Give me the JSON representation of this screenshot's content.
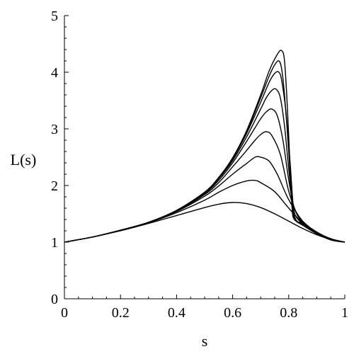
{
  "chart_data": {
    "type": "line",
    "title": "",
    "xlabel": "s",
    "ylabel": "L(s)",
    "xlim": [
      0,
      1
    ],
    "ylim": [
      0,
      5
    ],
    "xticks": [
      0,
      0.2,
      0.4,
      0.6,
      0.8,
      1
    ],
    "xtick_labels": [
      "0",
      "0.2",
      "0.4",
      "0.6",
      "0.8",
      "1"
    ],
    "yticks": [
      0,
      1,
      2,
      3,
      4,
      5
    ],
    "ytick_labels": [
      "0",
      "1",
      "2",
      "3",
      "4",
      "5"
    ],
    "grid": false,
    "line_color": "#000000",
    "series": [
      {
        "points": [
          [
            0,
            1.0
          ],
          [
            0.1,
            1.09
          ],
          [
            0.2,
            1.2
          ],
          [
            0.3,
            1.33
          ],
          [
            0.4,
            1.47
          ],
          [
            0.5,
            1.61
          ],
          [
            0.55,
            1.67
          ],
          [
            0.6,
            1.7
          ],
          [
            0.65,
            1.68
          ],
          [
            0.7,
            1.61
          ],
          [
            0.75,
            1.5
          ],
          [
            0.8,
            1.37
          ],
          [
            0.85,
            1.24
          ],
          [
            0.9,
            1.13
          ],
          [
            0.95,
            1.05
          ],
          [
            1.0,
            1.0
          ]
        ]
      },
      {
        "points": [
          [
            0,
            1.0
          ],
          [
            0.1,
            1.09
          ],
          [
            0.2,
            1.21
          ],
          [
            0.3,
            1.34
          ],
          [
            0.4,
            1.52
          ],
          [
            0.5,
            1.74
          ],
          [
            0.55,
            1.88
          ],
          [
            0.6,
            2.0
          ],
          [
            0.65,
            2.08
          ],
          [
            0.68,
            2.09
          ],
          [
            0.7,
            2.05
          ],
          [
            0.75,
            1.89
          ],
          [
            0.8,
            1.6
          ],
          [
            0.85,
            1.34
          ],
          [
            0.9,
            1.17
          ],
          [
            0.95,
            1.06
          ],
          [
            1.0,
            1.0
          ]
        ]
      },
      {
        "points": [
          [
            0,
            1.0
          ],
          [
            0.1,
            1.09
          ],
          [
            0.2,
            1.21
          ],
          [
            0.3,
            1.35
          ],
          [
            0.4,
            1.54
          ],
          [
            0.5,
            1.81
          ],
          [
            0.55,
            1.99
          ],
          [
            0.6,
            2.2
          ],
          [
            0.65,
            2.39
          ],
          [
            0.68,
            2.5
          ],
          [
            0.7,
            2.5
          ],
          [
            0.73,
            2.43
          ],
          [
            0.76,
            2.19
          ],
          [
            0.8,
            1.75
          ],
          [
            0.85,
            1.37
          ],
          [
            0.9,
            1.18
          ],
          [
            0.95,
            1.06
          ],
          [
            1.0,
            1.0
          ]
        ]
      },
      {
        "points": [
          [
            0,
            1.0
          ],
          [
            0.1,
            1.09
          ],
          [
            0.2,
            1.21
          ],
          [
            0.3,
            1.35
          ],
          [
            0.4,
            1.55
          ],
          [
            0.5,
            1.84
          ],
          [
            0.55,
            2.05
          ],
          [
            0.6,
            2.33
          ],
          [
            0.65,
            2.62
          ],
          [
            0.68,
            2.8
          ],
          [
            0.7,
            2.9
          ],
          [
            0.72,
            2.95
          ],
          [
            0.74,
            2.88
          ],
          [
            0.77,
            2.55
          ],
          [
            0.8,
            1.9
          ],
          [
            0.83,
            1.5
          ],
          [
            0.87,
            1.28
          ],
          [
            0.92,
            1.12
          ],
          [
            0.96,
            1.04
          ],
          [
            1.0,
            1.0
          ]
        ]
      },
      {
        "points": [
          [
            0,
            1.0
          ],
          [
            0.1,
            1.09
          ],
          [
            0.2,
            1.21
          ],
          [
            0.3,
            1.35
          ],
          [
            0.4,
            1.56
          ],
          [
            0.5,
            1.86
          ],
          [
            0.55,
            2.09
          ],
          [
            0.6,
            2.4
          ],
          [
            0.65,
            2.78
          ],
          [
            0.68,
            3.02
          ],
          [
            0.7,
            3.18
          ],
          [
            0.72,
            3.3
          ],
          [
            0.74,
            3.35
          ],
          [
            0.76,
            3.22
          ],
          [
            0.78,
            2.78
          ],
          [
            0.8,
            2.1
          ],
          [
            0.82,
            1.6
          ],
          [
            0.85,
            1.35
          ],
          [
            0.9,
            1.15
          ],
          [
            0.95,
            1.05
          ],
          [
            1.0,
            1.0
          ]
        ]
      },
      {
        "points": [
          [
            0,
            1.0
          ],
          [
            0.1,
            1.09
          ],
          [
            0.2,
            1.21
          ],
          [
            0.3,
            1.35
          ],
          [
            0.4,
            1.56
          ],
          [
            0.5,
            1.87
          ],
          [
            0.55,
            2.12
          ],
          [
            0.6,
            2.44
          ],
          [
            0.65,
            2.86
          ],
          [
            0.7,
            3.35
          ],
          [
            0.72,
            3.55
          ],
          [
            0.74,
            3.68
          ],
          [
            0.755,
            3.7
          ],
          [
            0.77,
            3.55
          ],
          [
            0.785,
            3.05
          ],
          [
            0.8,
            2.3
          ],
          [
            0.815,
            1.65
          ],
          [
            0.83,
            1.42
          ],
          [
            0.87,
            1.25
          ],
          [
            0.92,
            1.1
          ],
          [
            0.96,
            1.03
          ],
          [
            1.0,
            1.0
          ]
        ]
      },
      {
        "points": [
          [
            0,
            1.0
          ],
          [
            0.1,
            1.09
          ],
          [
            0.2,
            1.21
          ],
          [
            0.3,
            1.35
          ],
          [
            0.4,
            1.56
          ],
          [
            0.5,
            1.88
          ],
          [
            0.55,
            2.13
          ],
          [
            0.6,
            2.47
          ],
          [
            0.65,
            2.92
          ],
          [
            0.7,
            3.47
          ],
          [
            0.73,
            3.82
          ],
          [
            0.75,
            3.98
          ],
          [
            0.765,
            4.0
          ],
          [
            0.775,
            3.85
          ],
          [
            0.79,
            3.3
          ],
          [
            0.805,
            2.4
          ],
          [
            0.815,
            1.7
          ],
          [
            0.825,
            1.4
          ],
          [
            0.86,
            1.27
          ],
          [
            0.9,
            1.15
          ],
          [
            0.95,
            1.04
          ],
          [
            1.0,
            1.0
          ]
        ]
      },
      {
        "points": [
          [
            0,
            1.0
          ],
          [
            0.1,
            1.09
          ],
          [
            0.2,
            1.21
          ],
          [
            0.3,
            1.35
          ],
          [
            0.4,
            1.56
          ],
          [
            0.5,
            1.88
          ],
          [
            0.55,
            2.14
          ],
          [
            0.6,
            2.48
          ],
          [
            0.65,
            2.95
          ],
          [
            0.7,
            3.55
          ],
          [
            0.73,
            3.93
          ],
          [
            0.75,
            4.13
          ],
          [
            0.765,
            4.2
          ],
          [
            0.775,
            4.05
          ],
          [
            0.785,
            3.6
          ],
          [
            0.8,
            2.6
          ],
          [
            0.81,
            1.8
          ],
          [
            0.82,
            1.42
          ],
          [
            0.85,
            1.3
          ],
          [
            0.9,
            1.15
          ],
          [
            0.95,
            1.04
          ],
          [
            1.0,
            1.0
          ]
        ]
      },
      {
        "points": [
          [
            0,
            1.0
          ],
          [
            0.1,
            1.09
          ],
          [
            0.2,
            1.21
          ],
          [
            0.3,
            1.35
          ],
          [
            0.4,
            1.56
          ],
          [
            0.5,
            1.88
          ],
          [
            0.55,
            2.14
          ],
          [
            0.6,
            2.49
          ],
          [
            0.65,
            2.97
          ],
          [
            0.7,
            3.6
          ],
          [
            0.73,
            4.02
          ],
          [
            0.76,
            4.32
          ],
          [
            0.775,
            4.38
          ],
          [
            0.785,
            4.2
          ],
          [
            0.795,
            3.4
          ],
          [
            0.805,
            2.3
          ],
          [
            0.812,
            1.6
          ],
          [
            0.82,
            1.4
          ],
          [
            0.85,
            1.32
          ],
          [
            0.9,
            1.16
          ],
          [
            0.95,
            1.04
          ],
          [
            1.0,
            1.0
          ]
        ]
      }
    ]
  }
}
